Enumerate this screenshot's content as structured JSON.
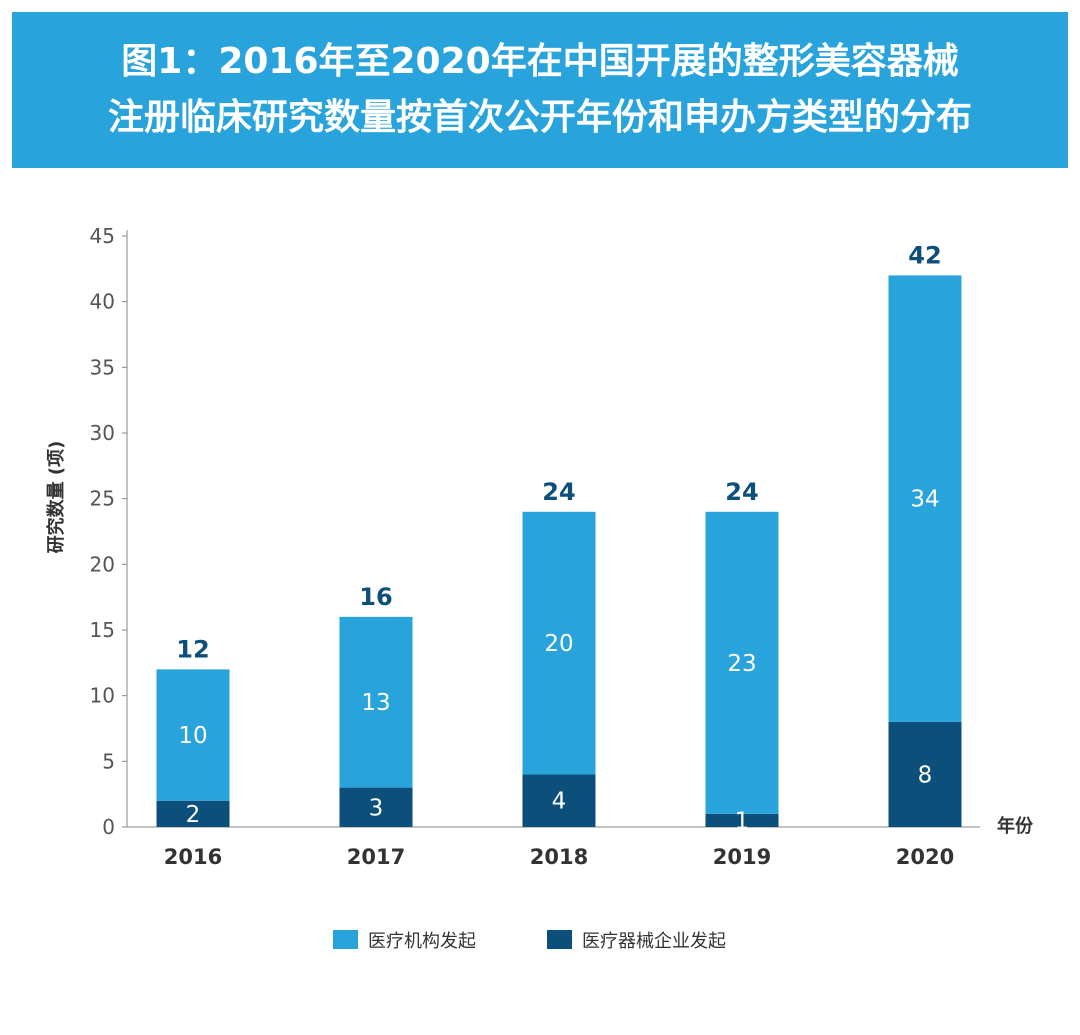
{
  "title": {
    "line1": "图1：2016年至2020年在中国开展的整形美容器械",
    "line2": "注册临床研究数量按首次公开年份和申办方类型的分布"
  },
  "colors": {
    "banner": "#29a3dc",
    "institution": "#29a3dc",
    "enterprise": "#0b4f7a",
    "total_label": "#0b4f7a"
  },
  "chart_data": {
    "type": "bar",
    "stacked": true,
    "categories": [
      "2016",
      "2017",
      "2018",
      "2019",
      "2020"
    ],
    "series": [
      {
        "name": "医疗器械企业发起",
        "values": [
          2,
          3,
          4,
          1,
          8
        ]
      },
      {
        "name": "医疗机构发起",
        "values": [
          10,
          13,
          20,
          23,
          34
        ]
      }
    ],
    "totals": [
      12,
      16,
      24,
      24,
      42
    ],
    "xlabel": "年份",
    "ylabel": "研究数量 (项)",
    "ylim": [
      0,
      45
    ],
    "yticks": [
      0,
      5,
      10,
      15,
      20,
      25,
      30,
      35,
      40,
      45
    ],
    "grid": false,
    "legend": [
      "医疗机构发起",
      "医疗器械企业发起"
    ],
    "legend_position": "bottom"
  }
}
